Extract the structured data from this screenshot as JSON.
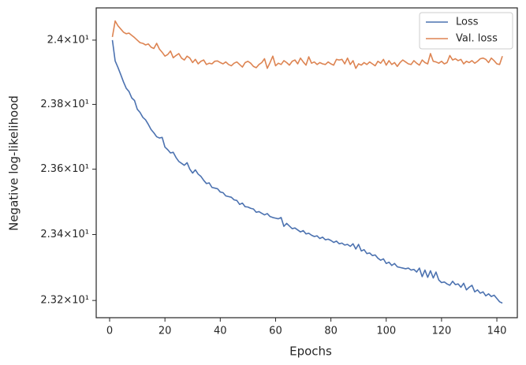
{
  "chart_data": {
    "type": "line",
    "xlabel": "Epochs",
    "ylabel": "Negative log-likelihood",
    "x": [
      1,
      2,
      3,
      4,
      5,
      6,
      7,
      8,
      9,
      10,
      11,
      12,
      13,
      14,
      15,
      16,
      17,
      18,
      19,
      20,
      21,
      22,
      23,
      24,
      25,
      26,
      27,
      28,
      29,
      30,
      31,
      32,
      33,
      34,
      35,
      36,
      37,
      38,
      39,
      40,
      41,
      42,
      43,
      44,
      45,
      46,
      47,
      48,
      49,
      50,
      51,
      52,
      53,
      54,
      55,
      56,
      57,
      58,
      59,
      60,
      61,
      62,
      63,
      64,
      65,
      66,
      67,
      68,
      69,
      70,
      71,
      72,
      73,
      74,
      75,
      76,
      77,
      78,
      79,
      80,
      81,
      82,
      83,
      84,
      85,
      86,
      87,
      88,
      89,
      90,
      91,
      92,
      93,
      94,
      95,
      96,
      97,
      98,
      99,
      100,
      101,
      102,
      103,
      104,
      105,
      106,
      107,
      108,
      109,
      110,
      111,
      112,
      113,
      114,
      115,
      116,
      117,
      118,
      119,
      120,
      121,
      122,
      123,
      124,
      125,
      126,
      127,
      128,
      129,
      130,
      131,
      132,
      133,
      134,
      135,
      136,
      137,
      138,
      139,
      140,
      141,
      142
    ],
    "series": [
      {
        "name": "Loss",
        "color": "#4c72b0",
        "values": [
          24.0,
          23.935,
          23.915,
          23.893,
          23.87,
          23.85,
          23.84,
          23.82,
          23.812,
          23.785,
          23.775,
          23.76,
          23.752,
          23.738,
          23.722,
          23.712,
          23.7,
          23.696,
          23.698,
          23.668,
          23.66,
          23.65,
          23.652,
          23.636,
          23.624,
          23.618,
          23.612,
          23.62,
          23.6,
          23.588,
          23.598,
          23.585,
          23.578,
          23.566,
          23.556,
          23.558,
          23.544,
          23.542,
          23.54,
          23.53,
          23.528,
          23.518,
          23.516,
          23.514,
          23.506,
          23.504,
          23.492,
          23.496,
          23.485,
          23.484,
          23.48,
          23.478,
          23.468,
          23.47,
          23.465,
          23.46,
          23.464,
          23.455,
          23.452,
          23.45,
          23.448,
          23.452,
          23.425,
          23.434,
          23.426,
          23.418,
          23.42,
          23.414,
          23.408,
          23.412,
          23.402,
          23.404,
          23.398,
          23.394,
          23.396,
          23.388,
          23.392,
          23.384,
          23.386,
          23.382,
          23.376,
          23.38,
          23.372,
          23.374,
          23.368,
          23.37,
          23.364,
          23.372,
          23.356,
          23.37,
          23.35,
          23.354,
          23.342,
          23.344,
          23.336,
          23.338,
          23.328,
          23.322,
          23.326,
          23.312,
          23.316,
          23.306,
          23.312,
          23.302,
          23.3,
          23.298,
          23.296,
          23.298,
          23.292,
          23.294,
          23.286,
          23.298,
          23.272,
          23.292,
          23.27,
          23.29,
          23.268,
          23.286,
          23.262,
          23.254,
          23.256,
          23.25,
          23.246,
          23.258,
          23.248,
          23.25,
          23.24,
          23.252,
          23.232,
          23.24,
          23.246,
          23.226,
          23.232,
          23.222,
          23.226,
          23.214,
          23.22,
          23.212,
          23.216,
          23.206,
          23.196,
          23.192
        ]
      },
      {
        "name": "Val. loss",
        "color": "#dd8452",
        "values": [
          24.01,
          24.06,
          24.045,
          24.035,
          24.025,
          24.02,
          24.022,
          24.015,
          24.008,
          24.0,
          23.992,
          23.99,
          23.985,
          23.988,
          23.978,
          23.974,
          23.99,
          23.972,
          23.962,
          23.95,
          23.955,
          23.966,
          23.945,
          23.952,
          23.958,
          23.944,
          23.938,
          23.95,
          23.944,
          23.93,
          23.94,
          23.926,
          23.934,
          23.938,
          23.924,
          23.928,
          23.926,
          23.934,
          23.935,
          23.93,
          23.926,
          23.932,
          23.924,
          23.92,
          23.928,
          23.932,
          23.924,
          23.916,
          23.93,
          23.934,
          23.928,
          23.918,
          23.914,
          23.924,
          23.93,
          23.942,
          23.912,
          23.93,
          23.95,
          23.92,
          23.928,
          23.924,
          23.936,
          23.93,
          23.922,
          23.934,
          23.938,
          23.926,
          23.944,
          23.932,
          23.922,
          23.948,
          23.928,
          23.932,
          23.924,
          23.93,
          23.926,
          23.924,
          23.932,
          23.926,
          23.922,
          23.94,
          23.938,
          23.94,
          23.926,
          23.944,
          23.924,
          23.936,
          23.912,
          23.926,
          23.922,
          23.93,
          23.924,
          23.932,
          23.926,
          23.92,
          23.934,
          23.928,
          23.94,
          23.922,
          23.936,
          23.924,
          23.93,
          23.918,
          23.93,
          23.938,
          23.932,
          23.926,
          23.924,
          23.936,
          23.928,
          23.922,
          23.938,
          23.93,
          23.926,
          23.958,
          23.934,
          23.932,
          23.928,
          23.934,
          23.926,
          23.93,
          23.952,
          23.938,
          23.942,
          23.936,
          23.94,
          23.926,
          23.934,
          23.93,
          23.936,
          23.928,
          23.934,
          23.942,
          23.944,
          23.94,
          23.93,
          23.944,
          23.936,
          23.926,
          23.924,
          23.95
        ]
      }
    ],
    "xlim": [
      -4.85,
      147.4
    ],
    "xticks": [
      0,
      20,
      40,
      60,
      80,
      100,
      120,
      140
    ],
    "ylim": [
      23.148,
      24.101
    ],
    "yscale": "log",
    "yticks": [
      {
        "value": 23.2,
        "label": "2.32×10¹"
      },
      {
        "value": 23.4,
        "label": "2.34×10¹"
      },
      {
        "value": 23.6,
        "label": "2.36×10¹"
      },
      {
        "value": 23.8,
        "label": "2.38×10¹"
      },
      {
        "value": 24,
        "label": "2.4×10¹"
      }
    ],
    "legend": "upper right"
  }
}
